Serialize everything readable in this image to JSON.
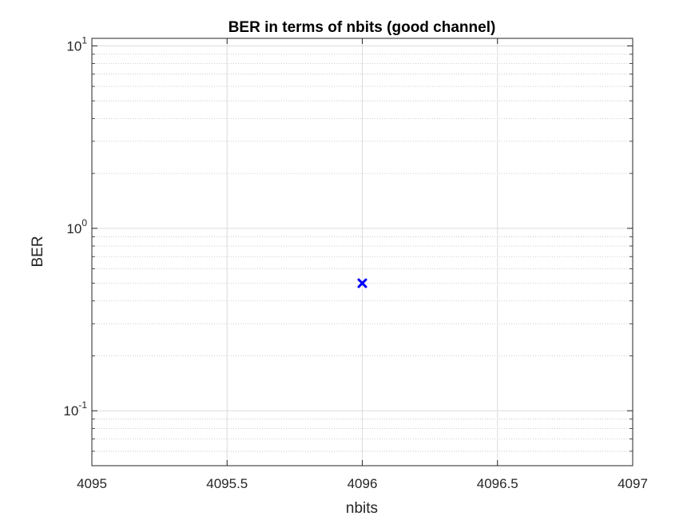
{
  "chart_data": {
    "type": "scatter",
    "title": "BER in terms of nbits (good channel)",
    "xlabel": "nbits",
    "ylabel": "BER",
    "xlim": [
      4095,
      4097
    ],
    "ylim": [
      0.05,
      11
    ],
    "yscale": "log",
    "xticks": [
      4095,
      4095.5,
      4096,
      4096.5,
      4097
    ],
    "xtick_labels": [
      "4095",
      "4095.5",
      "4096",
      "4096.5",
      "4097"
    ],
    "yticks": [
      {
        "value": 0.1,
        "base": "10",
        "exponent": "-1"
      },
      {
        "value": 1,
        "base": "10",
        "exponent": "0"
      },
      {
        "value": 10,
        "base": "10",
        "exponent": "1"
      }
    ],
    "grid": true,
    "marker": "x",
    "marker_color": "#0000ff",
    "points": [
      {
        "x": 4096,
        "y": 0.5
      }
    ]
  }
}
